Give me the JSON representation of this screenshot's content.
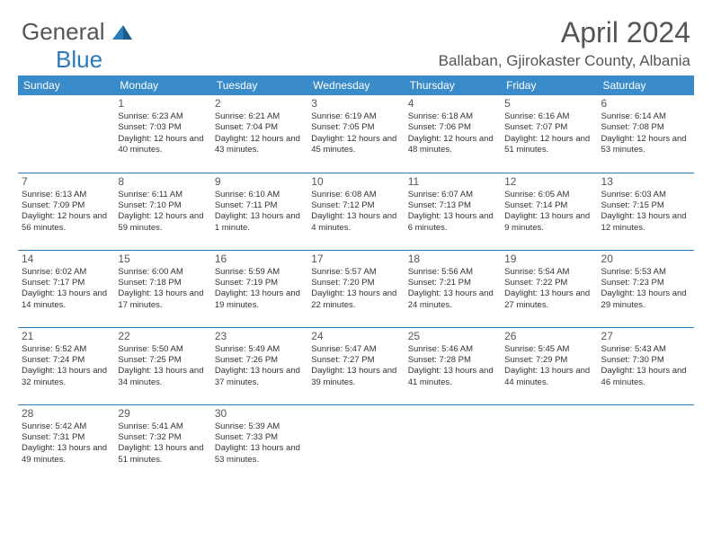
{
  "logo": {
    "text1": "General",
    "text2": "Blue"
  },
  "title": "April 2024",
  "location": "Ballaban, Gjirokaster County, Albania",
  "colors": {
    "header_bg": "#3a8bc9",
    "header_text": "#ffffff",
    "border": "#2b7bbd",
    "text": "#333333",
    "title_text": "#555555",
    "logo_gray": "#555555",
    "logo_blue": "#2b7bbd"
  },
  "dayHeaders": [
    "Sunday",
    "Monday",
    "Tuesday",
    "Wednesday",
    "Thursday",
    "Friday",
    "Saturday"
  ],
  "weeks": [
    [
      null,
      {
        "n": "1",
        "sr": "6:23 AM",
        "ss": "7:03 PM",
        "dl": "12 hours and 40 minutes."
      },
      {
        "n": "2",
        "sr": "6:21 AM",
        "ss": "7:04 PM",
        "dl": "12 hours and 43 minutes."
      },
      {
        "n": "3",
        "sr": "6:19 AM",
        "ss": "7:05 PM",
        "dl": "12 hours and 45 minutes."
      },
      {
        "n": "4",
        "sr": "6:18 AM",
        "ss": "7:06 PM",
        "dl": "12 hours and 48 minutes."
      },
      {
        "n": "5",
        "sr": "6:16 AM",
        "ss": "7:07 PM",
        "dl": "12 hours and 51 minutes."
      },
      {
        "n": "6",
        "sr": "6:14 AM",
        "ss": "7:08 PM",
        "dl": "12 hours and 53 minutes."
      }
    ],
    [
      {
        "n": "7",
        "sr": "6:13 AM",
        "ss": "7:09 PM",
        "dl": "12 hours and 56 minutes."
      },
      {
        "n": "8",
        "sr": "6:11 AM",
        "ss": "7:10 PM",
        "dl": "12 hours and 59 minutes."
      },
      {
        "n": "9",
        "sr": "6:10 AM",
        "ss": "7:11 PM",
        "dl": "13 hours and 1 minute."
      },
      {
        "n": "10",
        "sr": "6:08 AM",
        "ss": "7:12 PM",
        "dl": "13 hours and 4 minutes."
      },
      {
        "n": "11",
        "sr": "6:07 AM",
        "ss": "7:13 PM",
        "dl": "13 hours and 6 minutes."
      },
      {
        "n": "12",
        "sr": "6:05 AM",
        "ss": "7:14 PM",
        "dl": "13 hours and 9 minutes."
      },
      {
        "n": "13",
        "sr": "6:03 AM",
        "ss": "7:15 PM",
        "dl": "13 hours and 12 minutes."
      }
    ],
    [
      {
        "n": "14",
        "sr": "6:02 AM",
        "ss": "7:17 PM",
        "dl": "13 hours and 14 minutes."
      },
      {
        "n": "15",
        "sr": "6:00 AM",
        "ss": "7:18 PM",
        "dl": "13 hours and 17 minutes."
      },
      {
        "n": "16",
        "sr": "5:59 AM",
        "ss": "7:19 PM",
        "dl": "13 hours and 19 minutes."
      },
      {
        "n": "17",
        "sr": "5:57 AM",
        "ss": "7:20 PM",
        "dl": "13 hours and 22 minutes."
      },
      {
        "n": "18",
        "sr": "5:56 AM",
        "ss": "7:21 PM",
        "dl": "13 hours and 24 minutes."
      },
      {
        "n": "19",
        "sr": "5:54 AM",
        "ss": "7:22 PM",
        "dl": "13 hours and 27 minutes."
      },
      {
        "n": "20",
        "sr": "5:53 AM",
        "ss": "7:23 PM",
        "dl": "13 hours and 29 minutes."
      }
    ],
    [
      {
        "n": "21",
        "sr": "5:52 AM",
        "ss": "7:24 PM",
        "dl": "13 hours and 32 minutes."
      },
      {
        "n": "22",
        "sr": "5:50 AM",
        "ss": "7:25 PM",
        "dl": "13 hours and 34 minutes."
      },
      {
        "n": "23",
        "sr": "5:49 AM",
        "ss": "7:26 PM",
        "dl": "13 hours and 37 minutes."
      },
      {
        "n": "24",
        "sr": "5:47 AM",
        "ss": "7:27 PM",
        "dl": "13 hours and 39 minutes."
      },
      {
        "n": "25",
        "sr": "5:46 AM",
        "ss": "7:28 PM",
        "dl": "13 hours and 41 minutes."
      },
      {
        "n": "26",
        "sr": "5:45 AM",
        "ss": "7:29 PM",
        "dl": "13 hours and 44 minutes."
      },
      {
        "n": "27",
        "sr": "5:43 AM",
        "ss": "7:30 PM",
        "dl": "13 hours and 46 minutes."
      }
    ],
    [
      {
        "n": "28",
        "sr": "5:42 AM",
        "ss": "7:31 PM",
        "dl": "13 hours and 49 minutes."
      },
      {
        "n": "29",
        "sr": "5:41 AM",
        "ss": "7:32 PM",
        "dl": "13 hours and 51 minutes."
      },
      {
        "n": "30",
        "sr": "5:39 AM",
        "ss": "7:33 PM",
        "dl": "13 hours and 53 minutes."
      },
      null,
      null,
      null,
      null
    ]
  ],
  "labels": {
    "sunrise": "Sunrise:",
    "sunset": "Sunset:",
    "daylight": "Daylight:"
  }
}
